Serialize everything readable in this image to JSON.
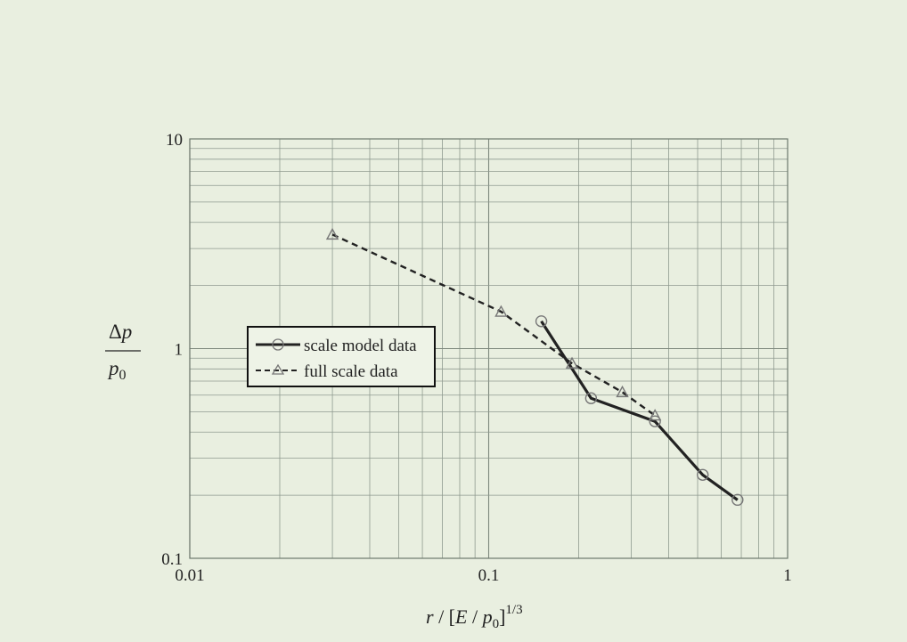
{
  "chart_data": {
    "type": "line",
    "x_scale": "log",
    "y_scale": "log",
    "xlim": [
      0.01,
      1
    ],
    "ylim": [
      0.1,
      10
    ],
    "grid": true,
    "legend_position": "center-left",
    "x_tick_labels": [
      "0.01",
      "0.1",
      "1"
    ],
    "y_tick_labels": [
      "0.1",
      "1",
      "10"
    ],
    "xlabel": "r/[E/p0]^1/3",
    "ylabel": "Δp / p0",
    "series": [
      {
        "name": "scale model data",
        "style": "solid",
        "marker": "circle",
        "color": "#222222",
        "x": [
          0.15,
          0.22,
          0.36,
          0.52,
          0.68
        ],
        "y": [
          1.35,
          0.58,
          0.45,
          0.25,
          0.19
        ]
      },
      {
        "name": "full scale data",
        "style": "dashed",
        "marker": "triangle",
        "color": "#222222",
        "x": [
          0.03,
          0.11,
          0.19,
          0.28,
          0.36
        ],
        "y": [
          3.5,
          1.5,
          0.85,
          0.62,
          0.48
        ]
      }
    ]
  }
}
